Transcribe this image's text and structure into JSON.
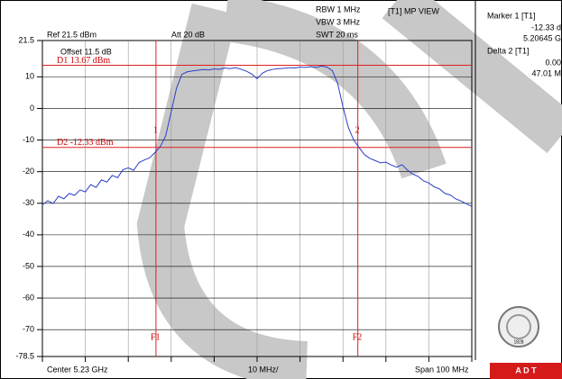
{
  "chart_data": {
    "type": "line",
    "header": {
      "ref": "Ref 21.5 dBm",
      "att": "Att 20 dB",
      "rbw": "RBW 1 MHz",
      "vbw": "VBW 3 MHz",
      "swt": "SWT 20 ms",
      "view": "[T1] MP VIEW",
      "offset": "Offset 11.5 dB"
    },
    "marker_panel": {
      "marker_title": "Marker 1 [T1]",
      "marker_level": "-12.33 d",
      "marker_freq": "5.20645 G",
      "delta_title": "Delta 2 [T1]",
      "delta_level": "0.00",
      "delta_freq": "47.01 M"
    },
    "footer": {
      "center": "Center 5.23 GHz",
      "division": "10 MHz/",
      "span": "Span 100 MHz"
    },
    "brand": "A D T",
    "logo_year": "1828",
    "color": "#2a3fc8",
    "xlim": [
      5.18,
      5.28
    ],
    "ylim": [
      -78.5,
      21.5
    ],
    "yticks": [
      21.5,
      10,
      0,
      -10,
      -20,
      -30,
      -40,
      -50,
      -60,
      -70,
      -78.5
    ],
    "grid": true,
    "x": [
      5.18,
      5.18125,
      5.1825,
      5.18375,
      5.185,
      5.18625,
      5.1875,
      5.18875,
      5.19,
      5.19125,
      5.1925,
      5.19375,
      5.195,
      5.19625,
      5.1975,
      5.19875,
      5.2,
      5.20125,
      5.2025,
      5.20375,
      5.205,
      5.20625,
      5.2075,
      5.20875,
      5.21,
      5.21125,
      5.2125,
      5.21375,
      5.215,
      5.21625,
      5.2175,
      5.21875,
      5.22,
      5.22125,
      5.2225,
      5.22375,
      5.225,
      5.22625,
      5.2275,
      5.22875,
      5.23,
      5.23125,
      5.2325,
      5.23375,
      5.235,
      5.23625,
      5.2375,
      5.23875,
      5.24,
      5.24125,
      5.2425,
      5.24375,
      5.245,
      5.24625,
      5.2475,
      5.24875,
      5.25,
      5.25125,
      5.2525,
      5.25375,
      5.255,
      5.25625,
      5.2575,
      5.25875,
      5.26,
      5.26125,
      5.2625,
      5.26375,
      5.265,
      5.26625,
      5.2675,
      5.26875,
      5.27,
      5.27125,
      5.2725,
      5.27375,
      5.275,
      5.27625,
      5.2775,
      5.27875,
      5.28
    ],
    "values": [
      -30.5,
      -29.2,
      -30.1,
      -27.8,
      -28.6,
      -26.9,
      -27.5,
      -25.8,
      -26.4,
      -24.1,
      -25.0,
      -22.6,
      -23.3,
      -21.2,
      -21.9,
      -19.4,
      -18.8,
      -19.6,
      -17.1,
      -16.3,
      -15.6,
      -13.9,
      -12.0,
      -8.5,
      -1.0,
      6.5,
      10.8,
      11.6,
      11.9,
      12.1,
      12.3,
      12.2,
      12.5,
      12.4,
      12.8,
      12.6,
      12.9,
      12.4,
      11.8,
      10.9,
      9.4,
      11.2,
      12.0,
      12.4,
      12.6,
      12.7,
      12.9,
      12.8,
      13.1,
      13.0,
      13.2,
      13.0,
      13.4,
      13.1,
      12.0,
      8.0,
      0.5,
      -6.0,
      -10.0,
      -12.4,
      -14.6,
      -15.8,
      -16.5,
      -17.2,
      -17.0,
      -17.9,
      -18.6,
      -17.8,
      -19.5,
      -20.8,
      -21.5,
      -22.9,
      -23.6,
      -24.8,
      -25.5,
      -26.9,
      -27.4,
      -28.6,
      -29.3,
      -30.2,
      -31.0
    ],
    "display_lines": [
      {
        "label": "D1 13.67 dBm",
        "value": 13.67
      },
      {
        "label": "D2 -12.33 dBm",
        "value": -12.33
      }
    ],
    "frequency_lines": [
      {
        "label": "F1",
        "marker": "1",
        "value": 5.20645
      },
      {
        "label": "F2",
        "marker": "2",
        "value": 5.25346
      }
    ],
    "line_color": "#e02020"
  }
}
